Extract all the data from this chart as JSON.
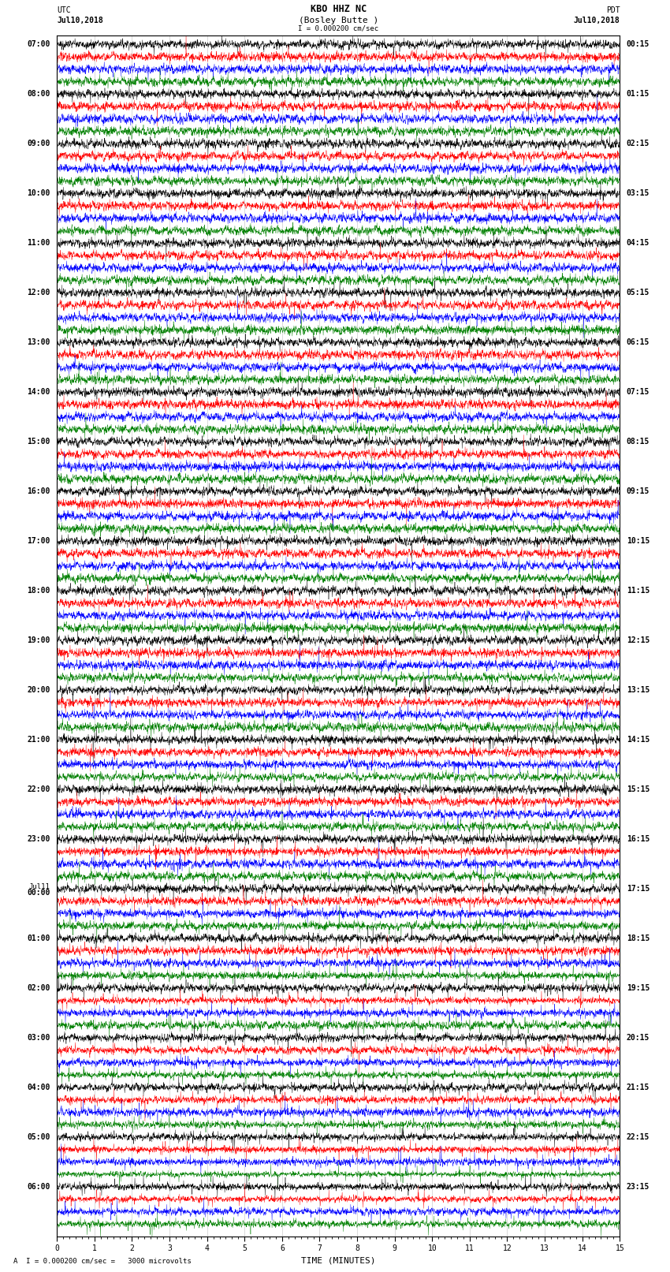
{
  "title_line1": "KBO HHZ NC",
  "title_line2": "(Bosley Butte )",
  "scale_text": "I = 0.000200 cm/sec",
  "left_label_line1": "UTC",
  "left_label_line2": "Jul10,2018",
  "right_label_line1": "PDT",
  "right_label_line2": "Jul10,2018",
  "xlabel": "TIME (MINUTES)",
  "footnote": "A  I = 0.000200 cm/sec =   3000 microvolts",
  "left_times": [
    "07:00",
    "08:00",
    "09:00",
    "10:00",
    "11:00",
    "12:00",
    "13:00",
    "14:00",
    "15:00",
    "16:00",
    "17:00",
    "18:00",
    "19:00",
    "20:00",
    "21:00",
    "22:00",
    "23:00",
    "Jul11\n00:00",
    "01:00",
    "02:00",
    "03:00",
    "04:00",
    "05:00",
    "06:00"
  ],
  "right_times": [
    "00:15",
    "01:15",
    "02:15",
    "03:15",
    "04:15",
    "05:15",
    "06:15",
    "07:15",
    "08:15",
    "09:15",
    "10:15",
    "11:15",
    "12:15",
    "13:15",
    "14:15",
    "15:15",
    "16:15",
    "17:15",
    "18:15",
    "19:15",
    "20:15",
    "21:15",
    "22:15",
    "23:15"
  ],
  "trace_colors": [
    "black",
    "red",
    "blue",
    "green"
  ],
  "n_hours": 24,
  "traces_per_hour": 4,
  "xmin": 0,
  "xmax": 15,
  "background_color": "white",
  "title_fontsize": 8.5,
  "label_fontsize": 7,
  "tick_fontsize": 7,
  "seed": 42,
  "amplitude_profile": [
    0.3,
    0.3,
    0.32,
    0.32,
    0.33,
    0.33,
    0.35,
    0.35,
    0.35,
    0.35,
    0.35,
    0.36,
    0.38,
    0.4,
    0.42,
    0.45,
    0.48,
    0.52,
    0.55,
    0.62,
    0.68,
    0.72,
    0.75,
    0.78
  ],
  "spike_profile": [
    0.006,
    0.006,
    0.007,
    0.007,
    0.007,
    0.007,
    0.008,
    0.008,
    0.008,
    0.008,
    0.008,
    0.009,
    0.01,
    0.011,
    0.012,
    0.013,
    0.015,
    0.016,
    0.018,
    0.02,
    0.022,
    0.025,
    0.028,
    0.03
  ]
}
